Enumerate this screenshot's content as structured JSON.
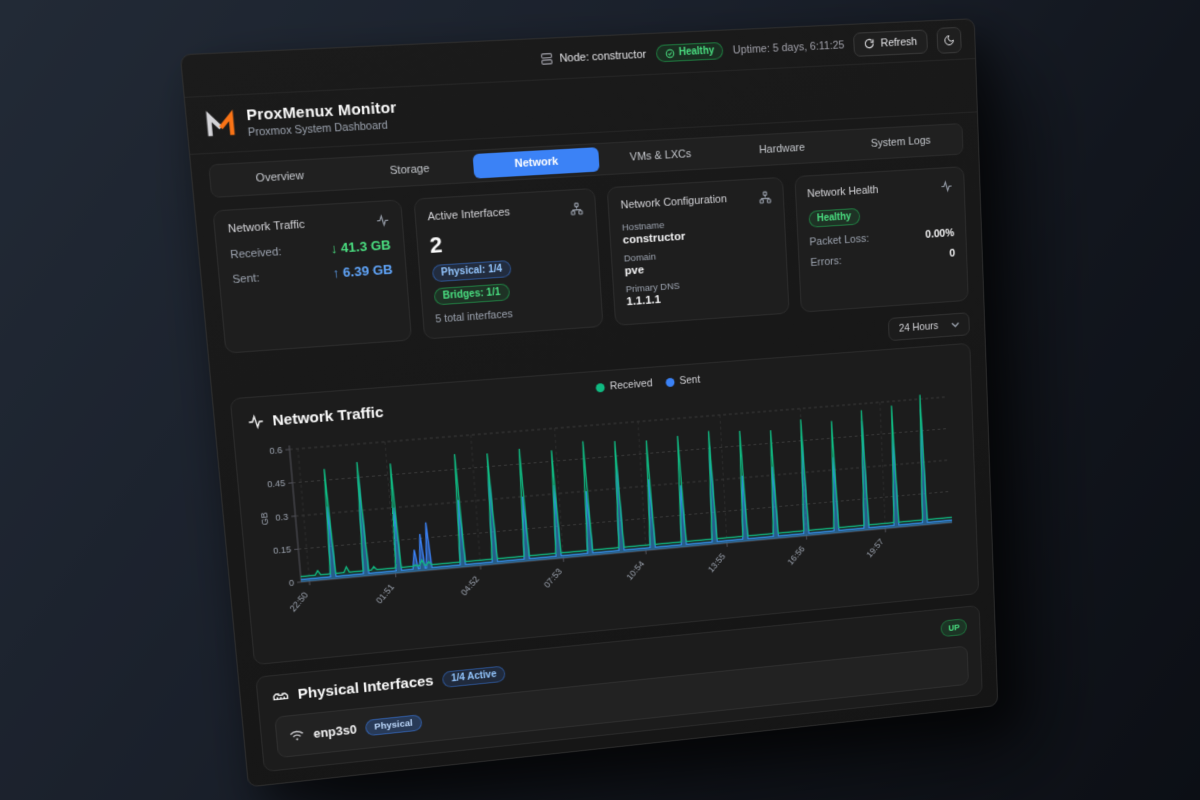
{
  "topbar": {
    "node_label": "Node: constructor",
    "health_badge": "Healthy",
    "uptime": "Uptime: 5 days, 6:11:25",
    "refresh_label": "Refresh"
  },
  "brand": {
    "title": "ProxMenux Monitor",
    "subtitle": "Proxmox System Dashboard"
  },
  "tabs": {
    "items": [
      {
        "label": "Overview"
      },
      {
        "label": "Storage"
      },
      {
        "label": "Network",
        "active": true
      },
      {
        "label": "VMs & LXCs"
      },
      {
        "label": "Hardware"
      },
      {
        "label": "System Logs"
      }
    ]
  },
  "cards": {
    "traffic": {
      "title": "Network Traffic",
      "received_label": "Received:",
      "received_value": "↓ 41.3 GB",
      "sent_label": "Sent:",
      "sent_value": "↑ 6.39 GB"
    },
    "interfaces": {
      "title": "Active Interfaces",
      "count": "2",
      "physical_badge": "Physical: 1/4",
      "bridges_badge": "Bridges: 1/1",
      "total": "5 total interfaces"
    },
    "config": {
      "title": "Network Configuration",
      "hostname_label": "Hostname",
      "hostname": "constructor",
      "domain_label": "Domain",
      "domain": "pve",
      "dns_label": "Primary DNS",
      "dns": "1.1.1.1"
    },
    "health": {
      "title": "Network Health",
      "status": "Healthy",
      "packet_loss_label": "Packet Loss:",
      "packet_loss": "0.00%",
      "errors_label": "Errors:",
      "errors": "0"
    }
  },
  "time_range": {
    "selected": "24 Hours"
  },
  "chart_data": {
    "type": "line",
    "title": "Network Traffic",
    "ylabel": "GB",
    "ylim": [
      0,
      0.6
    ],
    "yticks": [
      0,
      0.15,
      0.3,
      0.45,
      0.6
    ],
    "xtick_labels": [
      "22:50",
      "01:51",
      "04:52",
      "07:53",
      "10:54",
      "13:55",
      "16:56",
      "19:57"
    ],
    "xtick_pos": [
      0.012,
      0.138,
      0.264,
      0.389,
      0.515,
      0.641,
      0.766,
      0.892
    ],
    "legend": [
      "Received",
      "Sent"
    ],
    "series_colors": {
      "received": "#10b981",
      "sent": "#3b82f6"
    },
    "baseline_gb": {
      "received": 0.025,
      "sent": 0.012
    },
    "spikes": [
      {
        "pos": 0.025,
        "received": 0.045,
        "sent": 0.012
      },
      {
        "pos": 0.047,
        "received": 0.5,
        "sent": 0.33
      },
      {
        "pos": 0.067,
        "received": 0.05,
        "sent": 0.012
      },
      {
        "pos": 0.095,
        "received": 0.52,
        "sent": 0.46
      },
      {
        "pos": 0.107,
        "received": 0.04,
        "sent": 0.012
      },
      {
        "pos": 0.143,
        "received": 0.5,
        "sent": 0.3
      },
      {
        "pos": 0.168,
        "received": 0.03,
        "sent": 0.1
      },
      {
        "pos": 0.178,
        "received": 0.05,
        "sent": 0.17
      },
      {
        "pos": 0.188,
        "received": 0.04,
        "sent": 0.22
      },
      {
        "pos": 0.238,
        "received": 0.52,
        "sent": 0.31
      },
      {
        "pos": 0.286,
        "received": 0.51,
        "sent": 0.45
      },
      {
        "pos": 0.334,
        "received": 0.52,
        "sent": 0.3
      },
      {
        "pos": 0.382,
        "received": 0.5,
        "sent": 0.34
      },
      {
        "pos": 0.43,
        "received": 0.53,
        "sent": 0.3
      },
      {
        "pos": 0.478,
        "received": 0.52,
        "sent": 0.46
      },
      {
        "pos": 0.526,
        "received": 0.51,
        "sent": 0.33
      },
      {
        "pos": 0.574,
        "received": 0.52,
        "sent": 0.29
      },
      {
        "pos": 0.622,
        "received": 0.53,
        "sent": 0.46
      },
      {
        "pos": 0.67,
        "received": 0.52,
        "sent": 0.31
      },
      {
        "pos": 0.718,
        "received": 0.51,
        "sent": 0.34
      },
      {
        "pos": 0.766,
        "received": 0.55,
        "sent": 0.47
      },
      {
        "pos": 0.814,
        "received": 0.53,
        "sent": 0.36
      },
      {
        "pos": 0.862,
        "received": 0.57,
        "sent": 0.52
      },
      {
        "pos": 0.91,
        "received": 0.58,
        "sent": 0.44
      },
      {
        "pos": 0.956,
        "received": 0.62,
        "sent": 0.55
      }
    ]
  },
  "physical": {
    "title": "Physical Interfaces",
    "active_badge": "1/4 Active",
    "up_badge": "UP",
    "rows": [
      {
        "name": "enp3s0",
        "type_badge": "Physical"
      }
    ]
  },
  "colors": {
    "accent_blue": "#3b82f6",
    "status_green": "#22c55e",
    "received_series": "#10b981",
    "sent_series": "#3b82f6",
    "logo_orange": "#f97316"
  },
  "icons": {
    "server": "stacked-rectangles",
    "healthy_check": "check-circle",
    "refresh": "circular-arrow",
    "theme_moon": "crescent",
    "activity": "pulse-line",
    "network_nodes": "node-tree",
    "chevron_down": "v",
    "ethernet": "port-with-pins",
    "wifi": "signal-arcs"
  }
}
